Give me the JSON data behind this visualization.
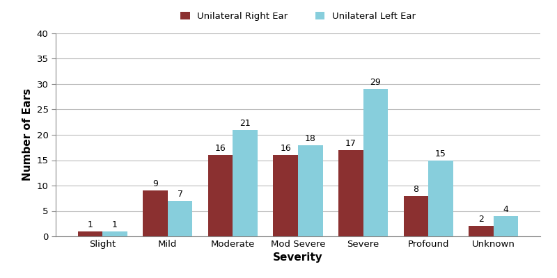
{
  "categories": [
    "Slight",
    "Mild",
    "Moderate",
    "Mod Severe",
    "Severe",
    "Profound",
    "Unknown"
  ],
  "right_ear": [
    1,
    9,
    16,
    16,
    17,
    8,
    2
  ],
  "left_ear": [
    1,
    7,
    21,
    18,
    29,
    15,
    4
  ],
  "right_color": "#8B3030",
  "left_color": "#87CEDC",
  "right_label": "Unilateral Right Ear",
  "left_label": "Unilateral Left Ear",
  "xlabel": "Severity",
  "ylabel": "Number of Ears",
  "ylim": [
    0,
    40
  ],
  "yticks": [
    0,
    5,
    10,
    15,
    20,
    25,
    30,
    35,
    40
  ],
  "bar_width": 0.38,
  "legend_fontsize": 9.5,
  "axis_label_fontsize": 11,
  "tick_fontsize": 9.5,
  "value_fontsize": 9,
  "background_color": "#ffffff",
  "plot_bg_color": "#ffffff",
  "grid_color": "#bbbbbb",
  "figsize": [
    8.0,
    4.0
  ],
  "dpi": 100
}
